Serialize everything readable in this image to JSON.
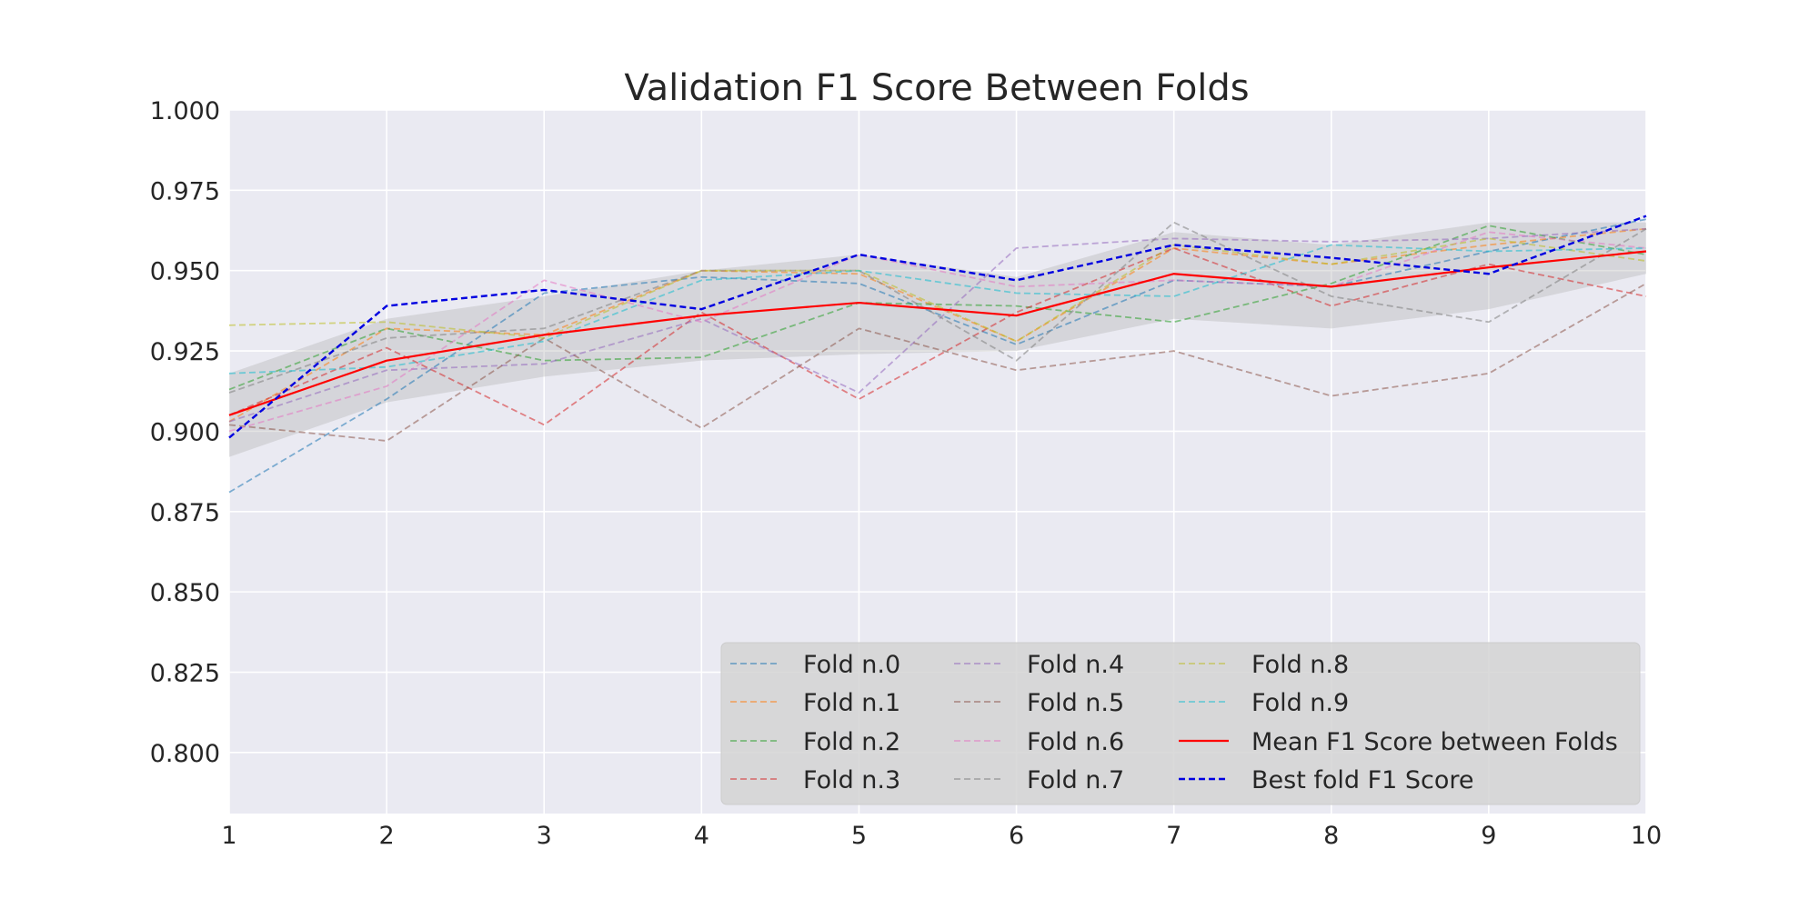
{
  "chart_data": {
    "type": "line",
    "title": "Validation F1 Score Between Folds",
    "xlabel": "",
    "ylabel": "",
    "x": [
      1,
      2,
      3,
      4,
      5,
      6,
      7,
      8,
      9,
      10
    ],
    "xlim": [
      1,
      10
    ],
    "ylim": [
      0.781,
      1.0
    ],
    "y_ticks": [
      "1.000",
      "0.975",
      "0.950",
      "0.925",
      "0.900",
      "0.875",
      "0.850",
      "0.825",
      "0.800"
    ],
    "x_ticks": [
      "1",
      "2",
      "3",
      "4",
      "5",
      "6",
      "7",
      "8",
      "9",
      "10"
    ],
    "grid": true,
    "legend_position": "lower-right",
    "legend_columns": 3,
    "background_color": "#eaeaf2",
    "band": {
      "lower": [
        0.892,
        0.909,
        0.917,
        0.922,
        0.924,
        0.925,
        0.935,
        0.932,
        0.938,
        0.949
      ],
      "upper": [
        0.918,
        0.935,
        0.942,
        0.95,
        0.955,
        0.948,
        0.962,
        0.958,
        0.965,
        0.965
      ],
      "color": "#b0b0b0"
    },
    "series": [
      {
        "name": "Fold n.0",
        "color": "#1f77b4",
        "style": "dashed",
        "values": [
          0.881,
          0.91,
          0.943,
          0.948,
          0.946,
          0.927,
          0.947,
          0.945,
          0.956,
          0.966
        ]
      },
      {
        "name": "Fold n.1",
        "color": "#ff7f0e",
        "style": "dashed",
        "values": [
          0.903,
          0.932,
          0.93,
          0.95,
          0.949,
          0.928,
          0.957,
          0.952,
          0.958,
          0.963
        ]
      },
      {
        "name": "Fold n.2",
        "color": "#2ca02c",
        "style": "dashed",
        "values": [
          0.913,
          0.932,
          0.922,
          0.923,
          0.94,
          0.939,
          0.934,
          0.946,
          0.964,
          0.955
        ]
      },
      {
        "name": "Fold n.3",
        "color": "#d62728",
        "style": "dashed",
        "values": [
          0.905,
          0.926,
          0.902,
          0.937,
          0.91,
          0.937,
          0.957,
          0.939,
          0.952,
          0.942
        ]
      },
      {
        "name": "Fold n.4",
        "color": "#9467bd",
        "style": "dashed",
        "values": [
          0.903,
          0.919,
          0.921,
          0.935,
          0.912,
          0.957,
          0.96,
          0.959,
          0.96,
          0.963
        ]
      },
      {
        "name": "Fold n.5",
        "color": "#8c564b",
        "style": "dashed",
        "values": [
          0.902,
          0.897,
          0.929,
          0.901,
          0.932,
          0.919,
          0.925,
          0.911,
          0.918,
          0.946
        ]
      },
      {
        "name": "Fold n.6",
        "color": "#e377c2",
        "style": "dashed",
        "values": [
          0.9,
          0.914,
          0.947,
          0.934,
          0.955,
          0.945,
          0.947,
          0.945,
          0.962,
          0.957
        ]
      },
      {
        "name": "Fold n.7",
        "color": "#7f7f7f",
        "style": "dashed",
        "values": [
          0.912,
          0.929,
          0.932,
          0.95,
          0.95,
          0.922,
          0.965,
          0.942,
          0.934,
          0.963
        ]
      },
      {
        "name": "Fold n.8",
        "color": "#bcbd22",
        "style": "dashed",
        "values": [
          0.933,
          0.934,
          0.929,
          0.95,
          0.95,
          0.928,
          0.958,
          0.952,
          0.96,
          0.953
        ]
      },
      {
        "name": "Fold n.9",
        "color": "#17becf",
        "style": "dashed",
        "values": [
          0.918,
          0.92,
          0.928,
          0.947,
          0.95,
          0.943,
          0.942,
          0.958,
          0.956,
          0.957
        ]
      },
      {
        "name": "Mean F1 Score between Folds",
        "color": "#ff0000",
        "style": "solid",
        "values": [
          0.905,
          0.922,
          0.93,
          0.936,
          0.94,
          0.936,
          0.949,
          0.945,
          0.951,
          0.956
        ]
      },
      {
        "name": "Best fold F1 Score",
        "color": "#0000e0",
        "style": "dashed-strong",
        "values": [
          0.898,
          0.939,
          0.944,
          0.938,
          0.955,
          0.947,
          0.958,
          0.954,
          0.949,
          0.967
        ]
      }
    ]
  }
}
